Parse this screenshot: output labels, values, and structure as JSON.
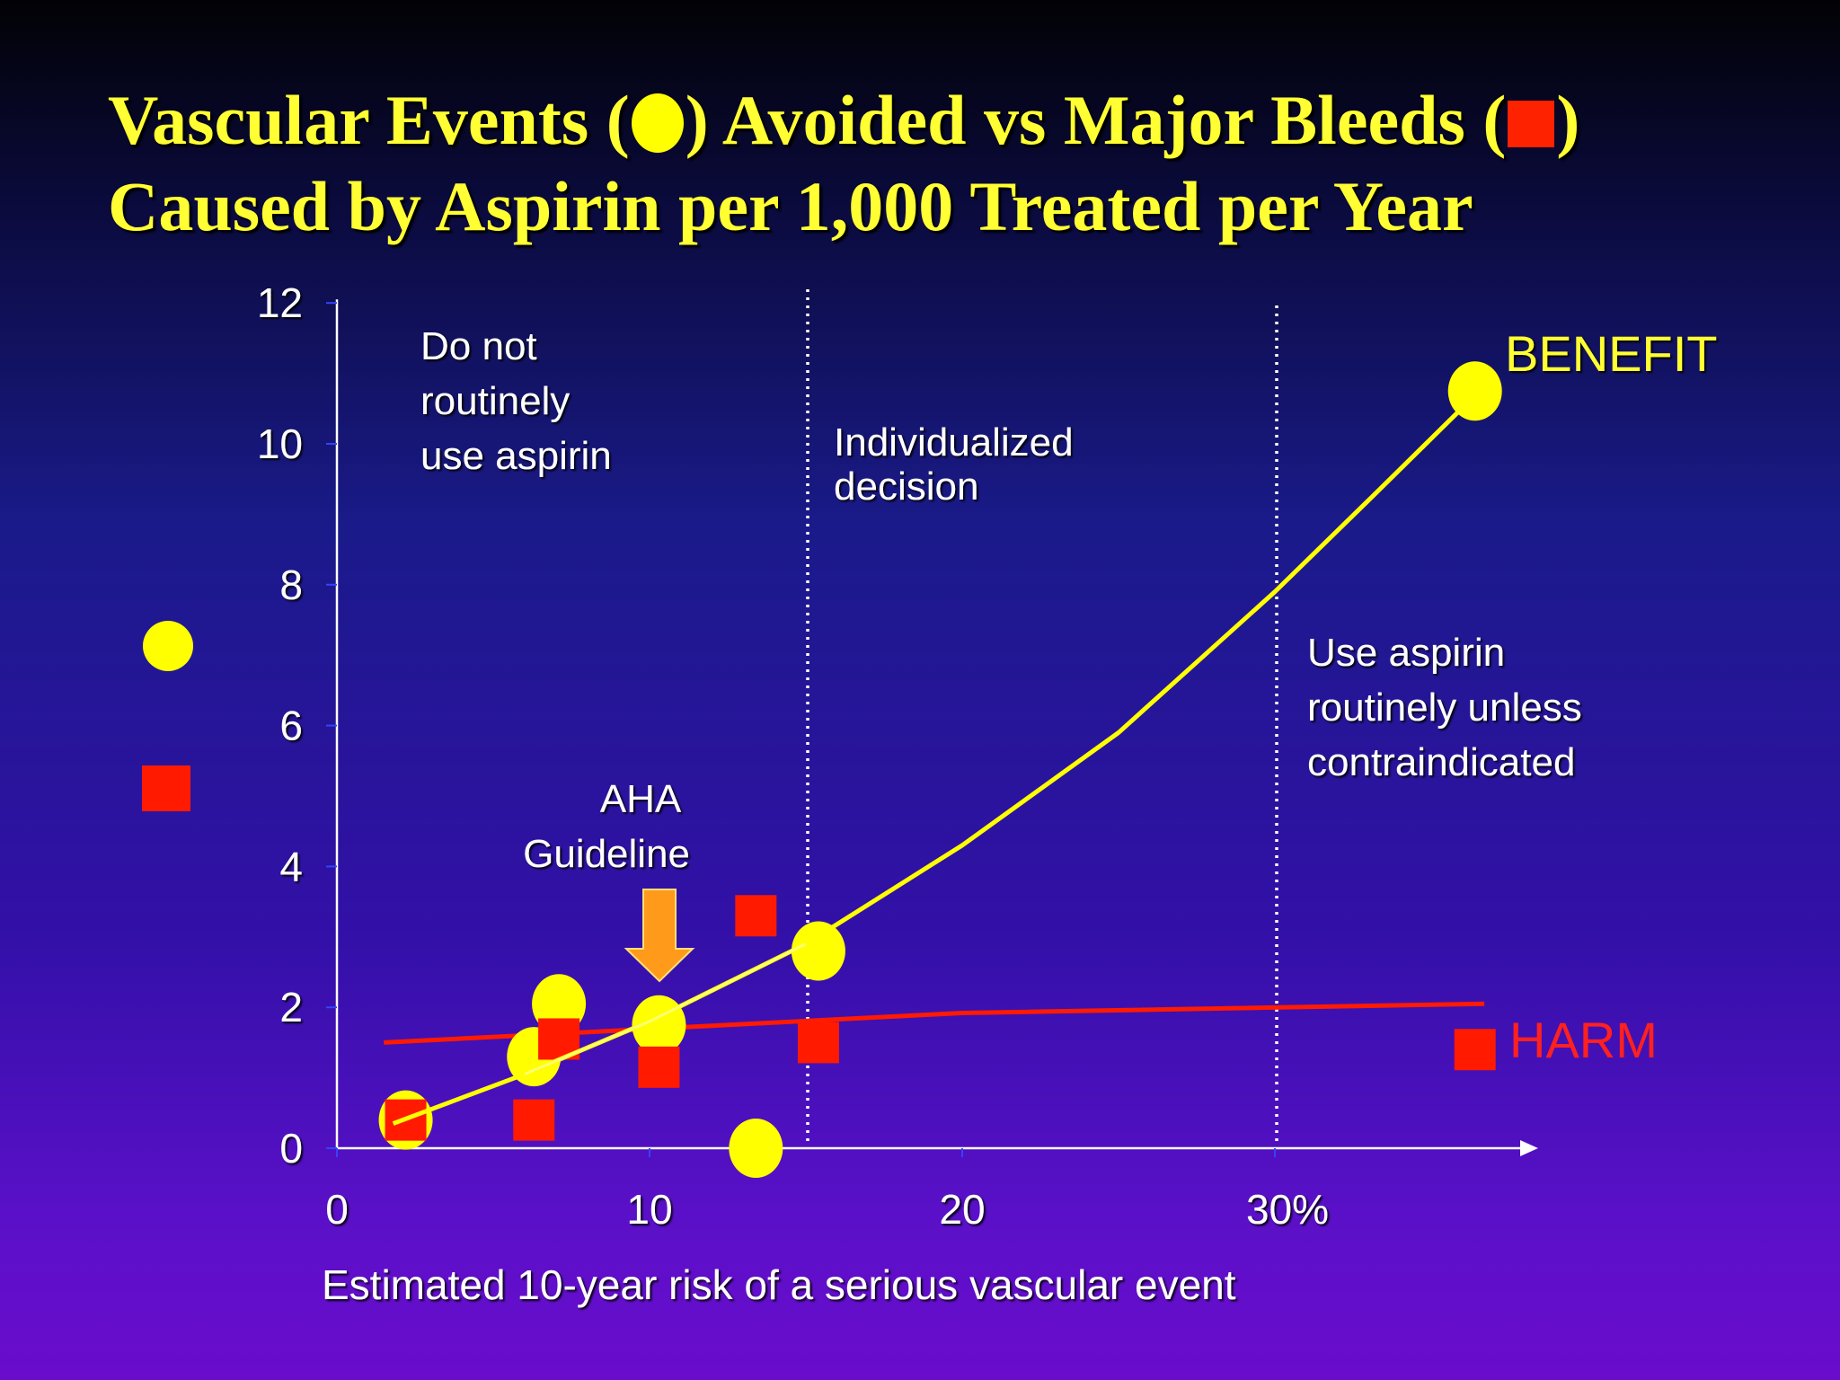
{
  "title": {
    "line1_part1": "Vascular Events (",
    "line1_part2": ") Avoided vs Major Bleeds (",
    "line1_part3": ")",
    "line2": "Caused by Aspirin per 1,000 Treated per Year"
  },
  "colors": {
    "benefit": "#ffff00",
    "harm": "#ff1a00",
    "axis": "#ffffff",
    "arrow": "#ff9a1a",
    "label_white": "#ffffff",
    "benefit_label": "#ffff33",
    "harm_label": "#ff2020"
  },
  "icons": {
    "benefit_marker": "yellow-circle-icon",
    "harm_marker": "red-square-icon"
  },
  "annotations": {
    "do_not_use": [
      "Do not",
      "routinely",
      "use aspirin"
    ],
    "individualized": [
      "Individualized",
      "decision"
    ],
    "use_aspirin": [
      "Use aspirin",
      "routinely unless",
      "contraindicated"
    ],
    "aha": [
      "AHA",
      "Guideline"
    ],
    "benefit_label": "BENEFIT",
    "harm_label": "HARM"
  },
  "chart_data": {
    "type": "scatter",
    "title": "Vascular Events (●) Avoided vs Major Bleeds (■) Caused by Aspirin per 1,000 Treated per Year",
    "xlabel": "Estimated 10-year risk of a serious vascular event",
    "ylabel": "",
    "xlim": [
      0,
      40
    ],
    "ylim": [
      0,
      12
    ],
    "x_ticks": [
      0,
      10,
      20,
      30
    ],
    "x_tick_labels": [
      "0",
      "10",
      "20",
      "30%"
    ],
    "y_ticks": [
      0,
      2,
      4,
      6,
      8,
      10,
      12
    ],
    "y_tick_labels": [
      "0",
      "2",
      "4",
      "6",
      "8",
      "10",
      "12"
    ],
    "grid": false,
    "vertical_reference_lines": [
      15,
      30
    ],
    "aha_guideline_x": 10,
    "series": [
      {
        "name": "",
        "marker": "circle",
        "points": [
          {
            "x": 2.2,
            "y": 0.4
          },
          {
            "x": 6.3,
            "y": 1.3
          },
          {
            "x": 7.1,
            "y": 2.05
          },
          {
            "x": 10.3,
            "y": 1.75
          },
          {
            "x": 13.4,
            "y": 0.0
          },
          {
            "x": 15.4,
            "y": 2.8
          },
          {
            "x": 36.4,
            "y": 10.75
          }
        ],
        "trend": [
          {
            "x": 1.8,
            "y": 0.35
          },
          {
            "x": 6,
            "y": 1.05
          },
          {
            "x": 10,
            "y": 1.8
          },
          {
            "x": 15,
            "y": 2.9
          },
          {
            "x": 20,
            "y": 4.3
          },
          {
            "x": 25,
            "y": 5.9
          },
          {
            "x": 30,
            "y": 7.9
          },
          {
            "x": 33,
            "y": 9.2
          },
          {
            "x": 36.2,
            "y": 10.6
          }
        ]
      },
      {
        "name": "",
        "marker": "square",
        "points": [
          {
            "x": 2.2,
            "y": 0.4
          },
          {
            "x": 6.3,
            "y": 0.4
          },
          {
            "x": 7.1,
            "y": 1.55
          },
          {
            "x": 10.3,
            "y": 1.15
          },
          {
            "x": 13.4,
            "y": 3.3
          },
          {
            "x": 15.4,
            "y": 1.5
          },
          {
            "x": 36.4,
            "y": 1.4
          }
        ],
        "trend": [
          {
            "x": 1.5,
            "y": 1.5
          },
          {
            "x": 20,
            "y": 1.92
          },
          {
            "x": 36.7,
            "y": 2.05
          }
        ]
      }
    ]
  }
}
